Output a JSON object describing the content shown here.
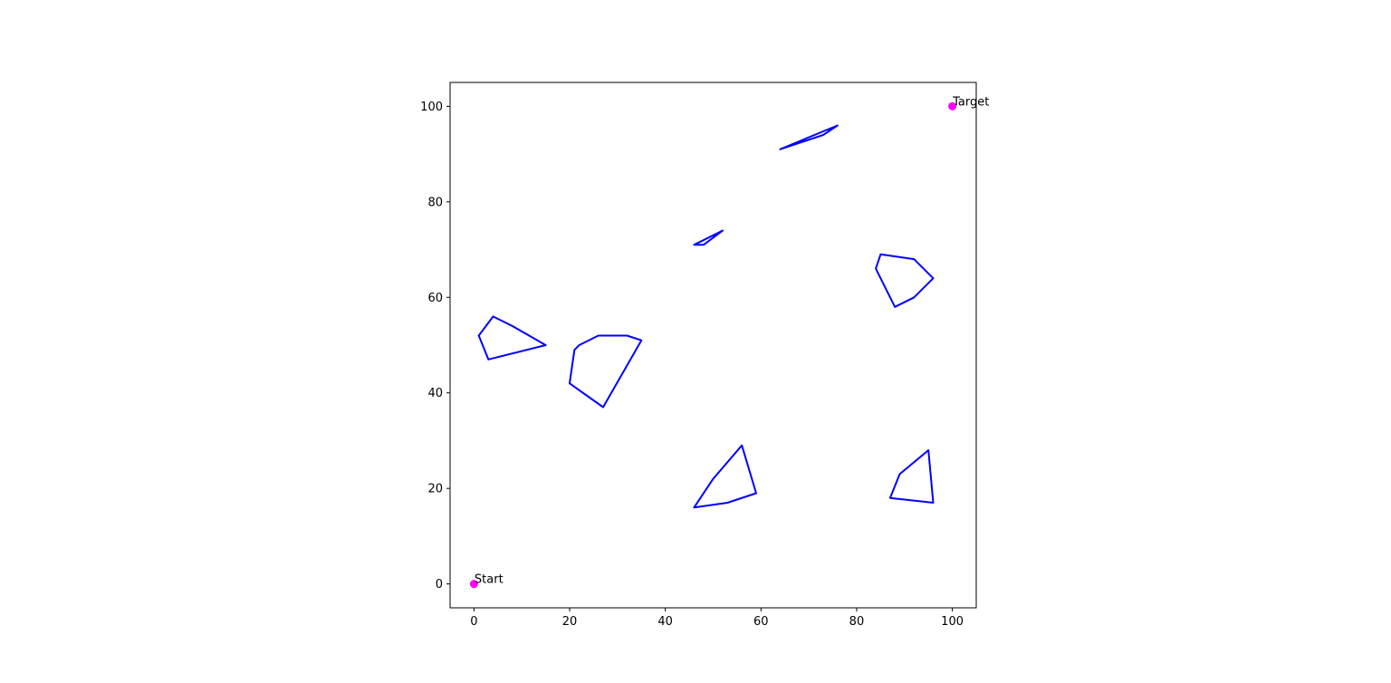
{
  "chart_data": {
    "type": "scatter",
    "title": "",
    "xlabel": "",
    "ylabel": "",
    "xlim": [
      -5,
      105
    ],
    "ylim": [
      -5,
      105
    ],
    "grid": false,
    "x_ticks": [
      0,
      20,
      40,
      60,
      80,
      100
    ],
    "y_ticks": [
      0,
      20,
      40,
      60,
      80,
      100
    ],
    "x_tick_labels": [
      "0",
      "20",
      "40",
      "60",
      "80",
      "100"
    ],
    "y_tick_labels": [
      "0",
      "20",
      "40",
      "60",
      "80",
      "100"
    ],
    "points": [
      {
        "label": "Start",
        "x": 0,
        "y": 0
      },
      {
        "label": "Target",
        "x": 100,
        "y": 100
      }
    ],
    "point_color": "#ff00ff",
    "obstacle_color": "#0000ff",
    "obstacles": [
      [
        [
          1,
          52
        ],
        [
          4,
          56
        ],
        [
          8,
          54
        ],
        [
          15,
          50
        ],
        [
          3,
          47
        ]
      ],
      [
        [
          20,
          42
        ],
        [
          21,
          49
        ],
        [
          22,
          50
        ],
        [
          26,
          52
        ],
        [
          32,
          52
        ],
        [
          35,
          51
        ],
        [
          27,
          37
        ]
      ],
      [
        [
          46,
          71
        ],
        [
          52,
          74
        ],
        [
          48,
          71
        ]
      ],
      [
        [
          64,
          91
        ],
        [
          76,
          96
        ],
        [
          73,
          94
        ]
      ],
      [
        [
          84,
          66
        ],
        [
          85,
          69
        ],
        [
          92,
          68
        ],
        [
          96,
          64
        ],
        [
          92,
          60
        ],
        [
          88,
          58
        ]
      ],
      [
        [
          46,
          16
        ],
        [
          50,
          22
        ],
        [
          56,
          29
        ],
        [
          59,
          19
        ],
        [
          53,
          17
        ]
      ],
      [
        [
          87,
          18
        ],
        [
          89,
          23
        ],
        [
          95,
          28
        ],
        [
          96,
          17
        ]
      ]
    ]
  }
}
